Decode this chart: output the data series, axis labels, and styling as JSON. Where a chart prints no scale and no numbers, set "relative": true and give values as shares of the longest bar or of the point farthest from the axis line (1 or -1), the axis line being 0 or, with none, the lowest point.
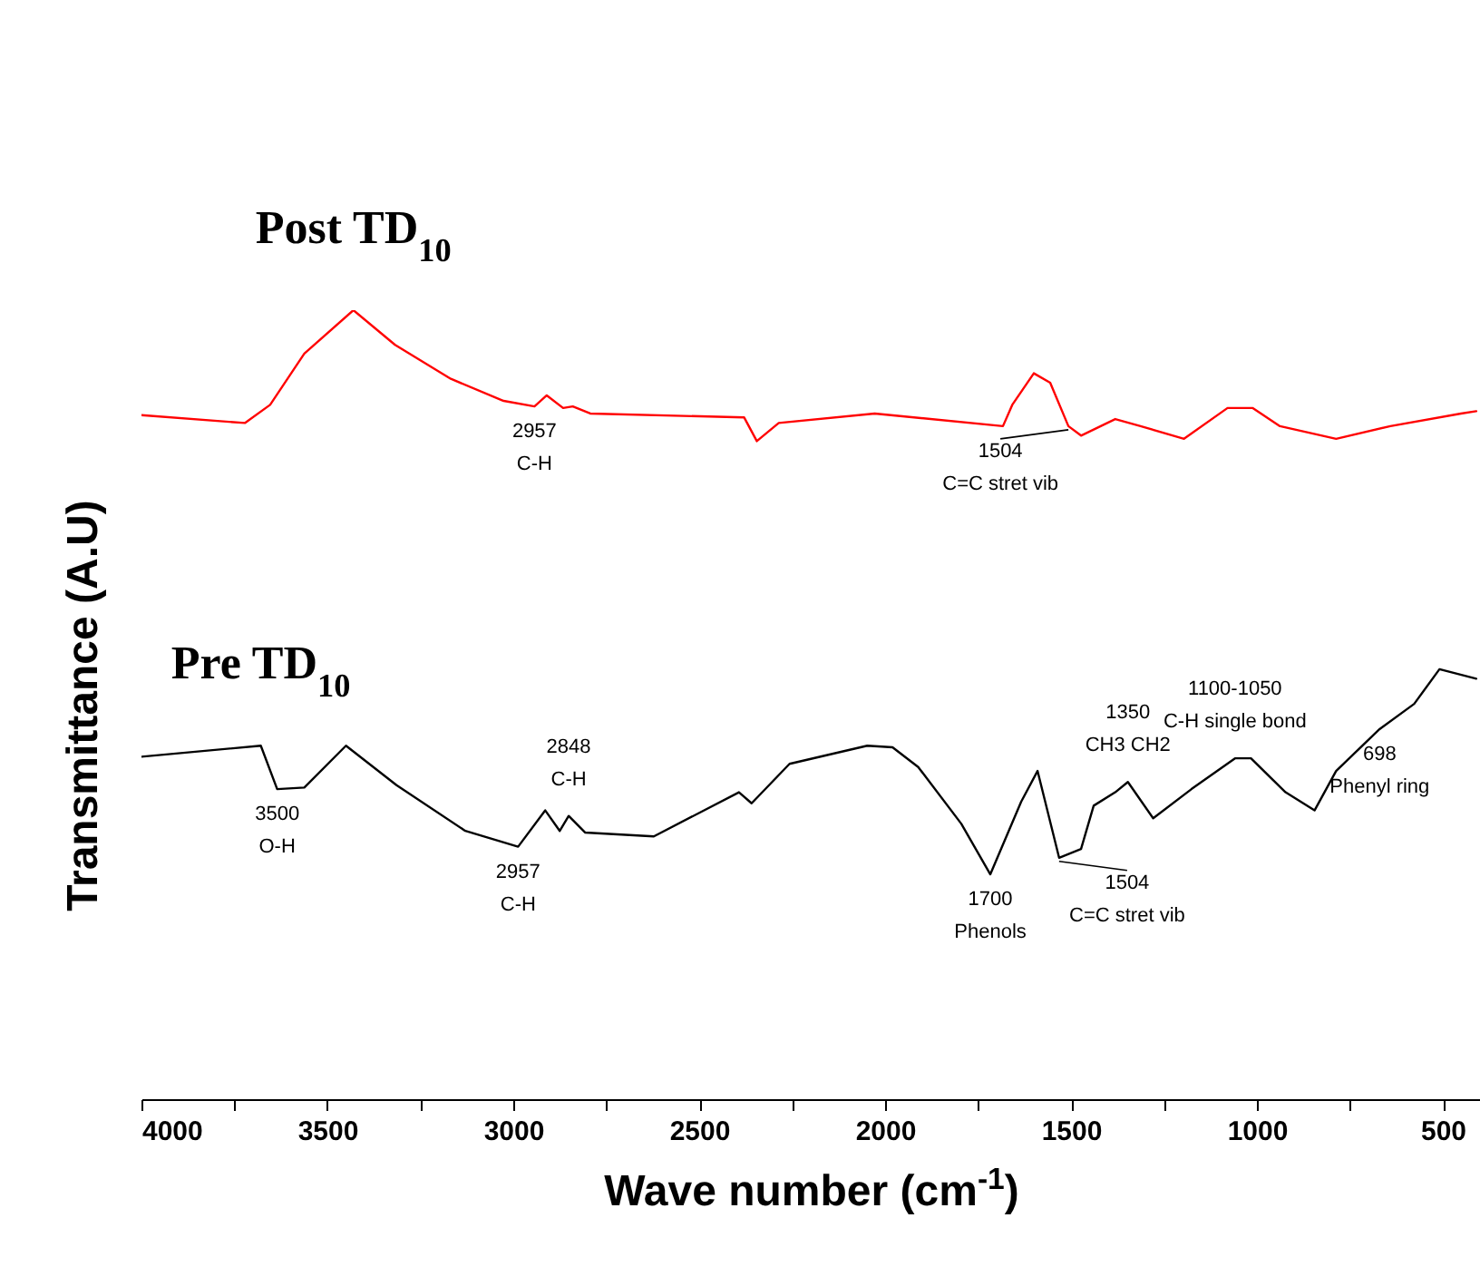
{
  "chart_data": {
    "type": "line",
    "relative": true,
    "xlabel": "Wave number (cm$^{-1}$)",
    "ylabel": "Transmittance (A.U)",
    "xlim": [
      4000,
      400
    ],
    "xticks": [
      4000,
      {
        "value": 3750,
        "label": null
      },
      3500,
      {
        "value": 3250,
        "label": null
      },
      3000,
      {
        "value": 2750,
        "label": null
      },
      2500,
      {
        "value": 2250,
        "label": null
      },
      2000,
      {
        "value": 1750,
        "label": null
      },
      1500,
      {
        "value": 1250,
        "label": null
      },
      1000,
      {
        "value": 750,
        "label": null
      },
      500
    ],
    "grid": false,
    "legend": false,
    "line_style": "solid",
    "series": [
      {
        "name": "Post TD$_{10}$",
        "color": "#ff0000",
        "x": [
          4000,
          3722,
          3654,
          3562,
          3430,
          3318,
          3168,
          3026,
          2943,
          2910,
          2866,
          2840,
          2793,
          2379,
          2345,
          2286,
          2028,
          1683,
          1658,
          1600,
          1556,
          1507,
          1473,
          1381,
          1313,
          1196,
          1079,
          1011,
          938,
          787,
          641,
          451,
          410
        ],
        "values": [
          0.867,
          0.857,
          0.88,
          0.945,
          1.0,
          0.956,
          0.913,
          0.885,
          0.878,
          0.892,
          0.876,
          0.878,
          0.869,
          0.864,
          0.834,
          0.857,
          0.869,
          0.853,
          0.88,
          0.92,
          0.908,
          0.853,
          0.841,
          0.862,
          0.853,
          0.837,
          0.876,
          0.876,
          0.853,
          0.837,
          0.853,
          0.869,
          0.872
        ]
      },
      {
        "name": "Pre TD$_{10}$",
        "color": "#000000",
        "x": [
          4000,
          3679,
          3635,
          3562,
          3450,
          3314,
          3129,
          2987,
          2914,
          2875,
          2851,
          2807,
          2622,
          2393,
          2359,
          2257,
          2048,
          1980,
          1911,
          1795,
          1717,
          1634,
          1590,
          1532,
          1473,
          1439,
          1381,
          1347,
          1279,
          1176,
          1059,
          1016,
          923,
          845,
          787,
          670,
          577,
          509,
          410
        ],
        "values": [
          0.434,
          0.448,
          0.393,
          0.395,
          0.448,
          0.398,
          0.34,
          0.32,
          0.366,
          0.34,
          0.359,
          0.338,
          0.333,
          0.389,
          0.375,
          0.425,
          0.448,
          0.446,
          0.421,
          0.349,
          0.285,
          0.377,
          0.416,
          0.306,
          0.317,
          0.372,
          0.389,
          0.402,
          0.356,
          0.393,
          0.432,
          0.432,
          0.389,
          0.366,
          0.416,
          0.469,
          0.501,
          0.545,
          0.533
        ]
      }
    ],
    "annotations": [
      {
        "text": "2957\nC-H",
        "x": 2943,
        "y": 0.878
      },
      {
        "text": "1504\nC=C stret vib",
        "x": 1507,
        "y": 0.853
      },
      {
        "text": "3500\nO-H",
        "x": 3635,
        "y": 0.393
      },
      {
        "text": "2957\nC-H",
        "x": 2987,
        "y": 0.32
      },
      {
        "text": "2848\nC-H",
        "x": 2851,
        "y": 0.359
      },
      {
        "text": "1700\nPhenols",
        "x": 1717,
        "y": 0.285
      },
      {
        "text": "1504\nC=C stret vib",
        "x": 1532,
        "y": 0.306
      },
      {
        "text": "1350\nCH3 CH2",
        "x": 1347,
        "y": 0.402
      },
      {
        "text": "1100-1050\nC-H single bond",
        "x": 1059,
        "y": 0.432
      },
      {
        "text": "698\nPhenyl ring",
        "x": 670,
        "y": 0.469
      }
    ]
  }
}
